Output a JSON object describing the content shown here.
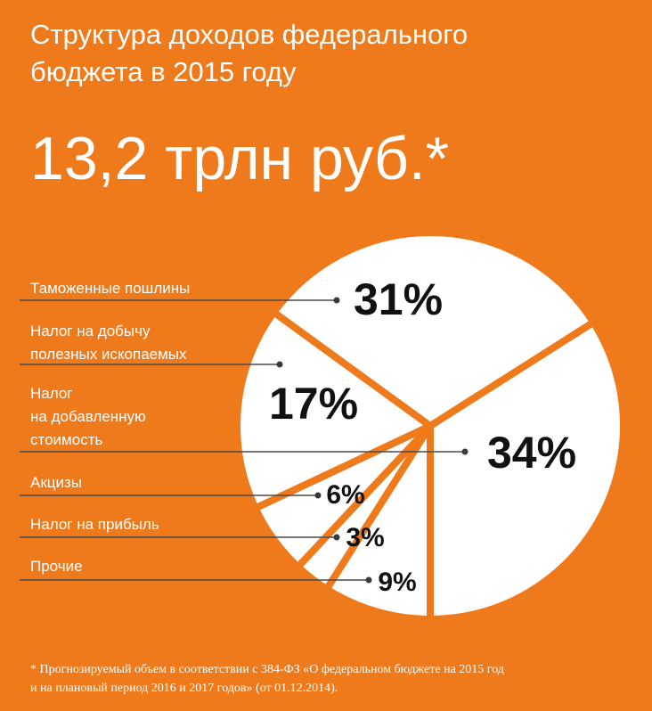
{
  "chart_data": {
    "type": "pie",
    "title": "Структура доходов федерального\nбюджета в 2015 году",
    "subtitle": "13,2 трлн руб.*",
    "categories": [
      "Таможенные пошлины",
      "Налог на добычу\nполезных ископаемых",
      "Налог\nна добавленную\nстоимость",
      "Акцизы",
      "Налог на прибыль",
      "Прочие"
    ],
    "values": [
      31,
      17,
      34,
      6,
      3,
      9
    ],
    "value_labels": [
      "31%",
      "17%",
      "34%",
      "6%",
      "3%",
      "9%"
    ],
    "color": "#ffffff",
    "footnote": "* Прогнозируемый объем в соответствии с 384-ФЗ «О федеральном бюджете на 2015 год\nи на плановый период 2016 и 2017 годов» (от 01.12.2014)."
  }
}
